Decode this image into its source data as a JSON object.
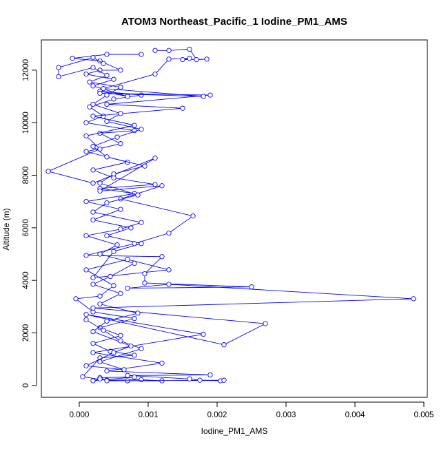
{
  "chart_data": {
    "type": "line",
    "title": "ATOM3 Northeast_Pacific_1 Iodine_PM1_AMS",
    "xlabel": "Iodine_PM1_AMS",
    "ylabel": "Altitude (m)",
    "xlim": [
      -0.00055,
      0.00505
    ],
    "ylim": [
      -450,
      13150
    ],
    "x_ticks": [
      0,
      0.001,
      0.002,
      0.003,
      0.004,
      0.005
    ],
    "x_tick_labels": [
      "0.000",
      "0.001",
      "0.002",
      "0.003",
      "0.004",
      "0.005"
    ],
    "y_ticks": [
      0,
      2000,
      4000,
      6000,
      8000,
      10000,
      12000
    ],
    "y_tick_labels": [
      "0",
      "2000",
      "4000",
      "6000",
      "8000",
      "10000",
      "12000"
    ],
    "grid": false,
    "marker": "open-circle",
    "colors": {
      "series": "#0000ff",
      "axes": "#000000",
      "background": "#ffffff"
    },
    "series": [
      {
        "points": [
          [
            0.0007,
            180
          ],
          [
            0.0012,
            180
          ],
          [
            0.0009,
            220
          ],
          [
            0.0004,
            200
          ],
          [
            5e-05,
            330
          ],
          [
            0.0003,
            1050
          ],
          [
            0.0008,
            1150
          ],
          [
            0.00045,
            1300
          ],
          [
            0.0002,
            1600
          ],
          [
            0.0006,
            1900
          ],
          [
            0.0003,
            2200
          ],
          [
            0.0008,
            2550
          ],
          [
            0.0002,
            2800
          ],
          [
            -5e-05,
            3300
          ],
          [
            0.0003,
            3400
          ],
          [
            0.0005,
            3800
          ],
          [
            0.0001,
            4400
          ],
          [
            0.0007,
            4800
          ],
          [
            0.0013,
            4400
          ],
          [
            0.0002,
            4100
          ],
          [
            0.0005,
            5100
          ],
          [
            0.0009,
            5400
          ],
          [
            0.0004,
            5700
          ],
          [
            0.00075,
            6000
          ],
          [
            0.0002,
            6300
          ],
          [
            0.0006,
            6700
          ],
          [
            0.0001,
            7000
          ],
          [
            0.0008,
            7300
          ],
          [
            0.0003,
            7500
          ],
          [
            0.0011,
            7650
          ],
          [
            0.0005,
            7900
          ],
          [
            0.0002,
            8200
          ],
          [
            0.0007,
            8500
          ],
          [
            0.0001,
            8900
          ],
          [
            0.0006,
            9200
          ],
          [
            0.0003,
            9600
          ],
          [
            0.0008,
            9700
          ],
          [
            0.0001,
            10000
          ],
          [
            0.00035,
            10250
          ],
          [
            0.00015,
            10600
          ],
          [
            0.0005,
            10900
          ],
          [
            0.0009,
            11050
          ],
          [
            0.0003,
            11200
          ],
          [
            0.0007,
            11000
          ],
          [
            0.0002,
            11400
          ],
          [
            0.0005,
            11650
          ],
          [
            0.0001,
            11850
          ],
          [
            0.0003,
            12000
          ],
          [
            0.0006,
            12000
          ],
          [
            0.0003,
            12350
          ],
          [
            -0.0001,
            12450
          ],
          [
            0.0004,
            12600
          ],
          [
            0.0009,
            12600
          ]
        ]
      },
      {
        "points": [
          [
            0.0011,
            12750
          ],
          [
            0.0013,
            12750
          ],
          [
            0.0016,
            12800
          ],
          [
            0.0017,
            12400
          ],
          [
            0.00185,
            12420
          ],
          [
            0.0015,
            12400
          ],
          [
            0.0016,
            12450
          ],
          [
            0.0013,
            12420
          ],
          [
            0.0011,
            11850
          ],
          [
            0.00035,
            11300
          ],
          [
            0.0018,
            11000
          ],
          [
            0.0003,
            11120
          ],
          [
            0.0019,
            11050
          ],
          [
            0.0004,
            10700
          ],
          [
            0.0015,
            10550
          ],
          [
            0.0002,
            10250
          ],
          [
            0.0008,
            9900
          ],
          [
            0.0001,
            9500
          ],
          [
            0.0003,
            9000
          ],
          [
            -0.00045,
            8150
          ],
          [
            0.0002,
            7700
          ],
          [
            0.0011,
            8650
          ],
          [
            0.0003,
            7400
          ],
          [
            0.0012,
            7600
          ],
          [
            0.0006,
            7100
          ],
          [
            0.00165,
            6450
          ],
          [
            0.0013,
            5800
          ],
          [
            0.0008,
            5400
          ],
          [
            0.0001,
            4950
          ],
          [
            0.0012,
            4900
          ],
          [
            0.00095,
            4250
          ],
          [
            0.00095,
            3900
          ],
          [
            0.0025,
            3750
          ],
          [
            0.0007,
            3700
          ],
          [
            0.0013,
            3850
          ],
          [
            0.00485,
            3300
          ],
          [
            0.0002,
            2950
          ],
          [
            0.0027,
            2350
          ],
          [
            0.0021,
            1550
          ],
          [
            0.0001,
            2700
          ],
          [
            0.0018,
            1950
          ],
          [
            0.0002,
            1250
          ],
          [
            0.0012,
            850
          ],
          [
            0.0004,
            550
          ],
          [
            0.0019,
            400
          ],
          [
            0.0007,
            380
          ],
          [
            0.0016,
            250
          ],
          [
            0.00175,
            200
          ],
          [
            0.00205,
            180
          ],
          [
            0.0021,
            200
          ],
          [
            0.0004,
            180
          ],
          [
            0.0003,
            300
          ],
          [
            0.0008,
            320
          ],
          [
            0.0002,
            180
          ],
          [
            0.0003,
            250
          ]
        ]
      },
      {
        "points": [
          [
            0.0001,
            2500
          ],
          [
            0.00035,
            2100
          ],
          [
            0.0006,
            1700
          ],
          [
            0.0009,
            1400
          ],
          [
            0.0003,
            900
          ],
          [
            0.00065,
            600
          ],
          [
            0.0001,
            750
          ],
          [
            0.0005,
            1250
          ],
          [
            0.00075,
            1500
          ],
          [
            0.0002,
            2050
          ],
          [
            0.0004,
            2450
          ],
          [
            0.00085,
            2750
          ],
          [
            0.0003,
            3100
          ],
          [
            0.0006,
            3500
          ],
          [
            0.0002,
            3850
          ],
          [
            0.00045,
            4150
          ],
          [
            0.0008,
            4650
          ],
          [
            0.0003,
            5000
          ],
          [
            0.00055,
            5350
          ],
          [
            0.0001,
            5700
          ],
          [
            0.0006,
            5950
          ],
          [
            0.0009,
            6200
          ],
          [
            0.0002,
            6600
          ],
          [
            0.0004,
            6950
          ],
          [
            0.00085,
            7250
          ],
          [
            0.0003,
            7700
          ],
          [
            0.0005,
            8050
          ],
          [
            0.00095,
            8350
          ],
          [
            0.0004,
            8700
          ],
          [
            0.0002,
            9100
          ],
          [
            0.00055,
            9450
          ],
          [
            0.0009,
            9750
          ],
          [
            0.0004,
            10050
          ],
          [
            0.0006,
            10350
          ],
          [
            0.0002,
            10700
          ],
          [
            0.0004,
            11050
          ],
          [
            0.0006,
            11350
          ],
          [
            0.00015,
            11550
          ],
          [
            0.0004,
            11800
          ],
          [
            0.0002,
            12100
          ],
          [
            -0.0003,
            11750
          ],
          [
            -0.0003,
            12100
          ],
          [
            0.0002,
            12480
          ],
          [
            0.00035,
            12250
          ]
        ]
      }
    ]
  }
}
